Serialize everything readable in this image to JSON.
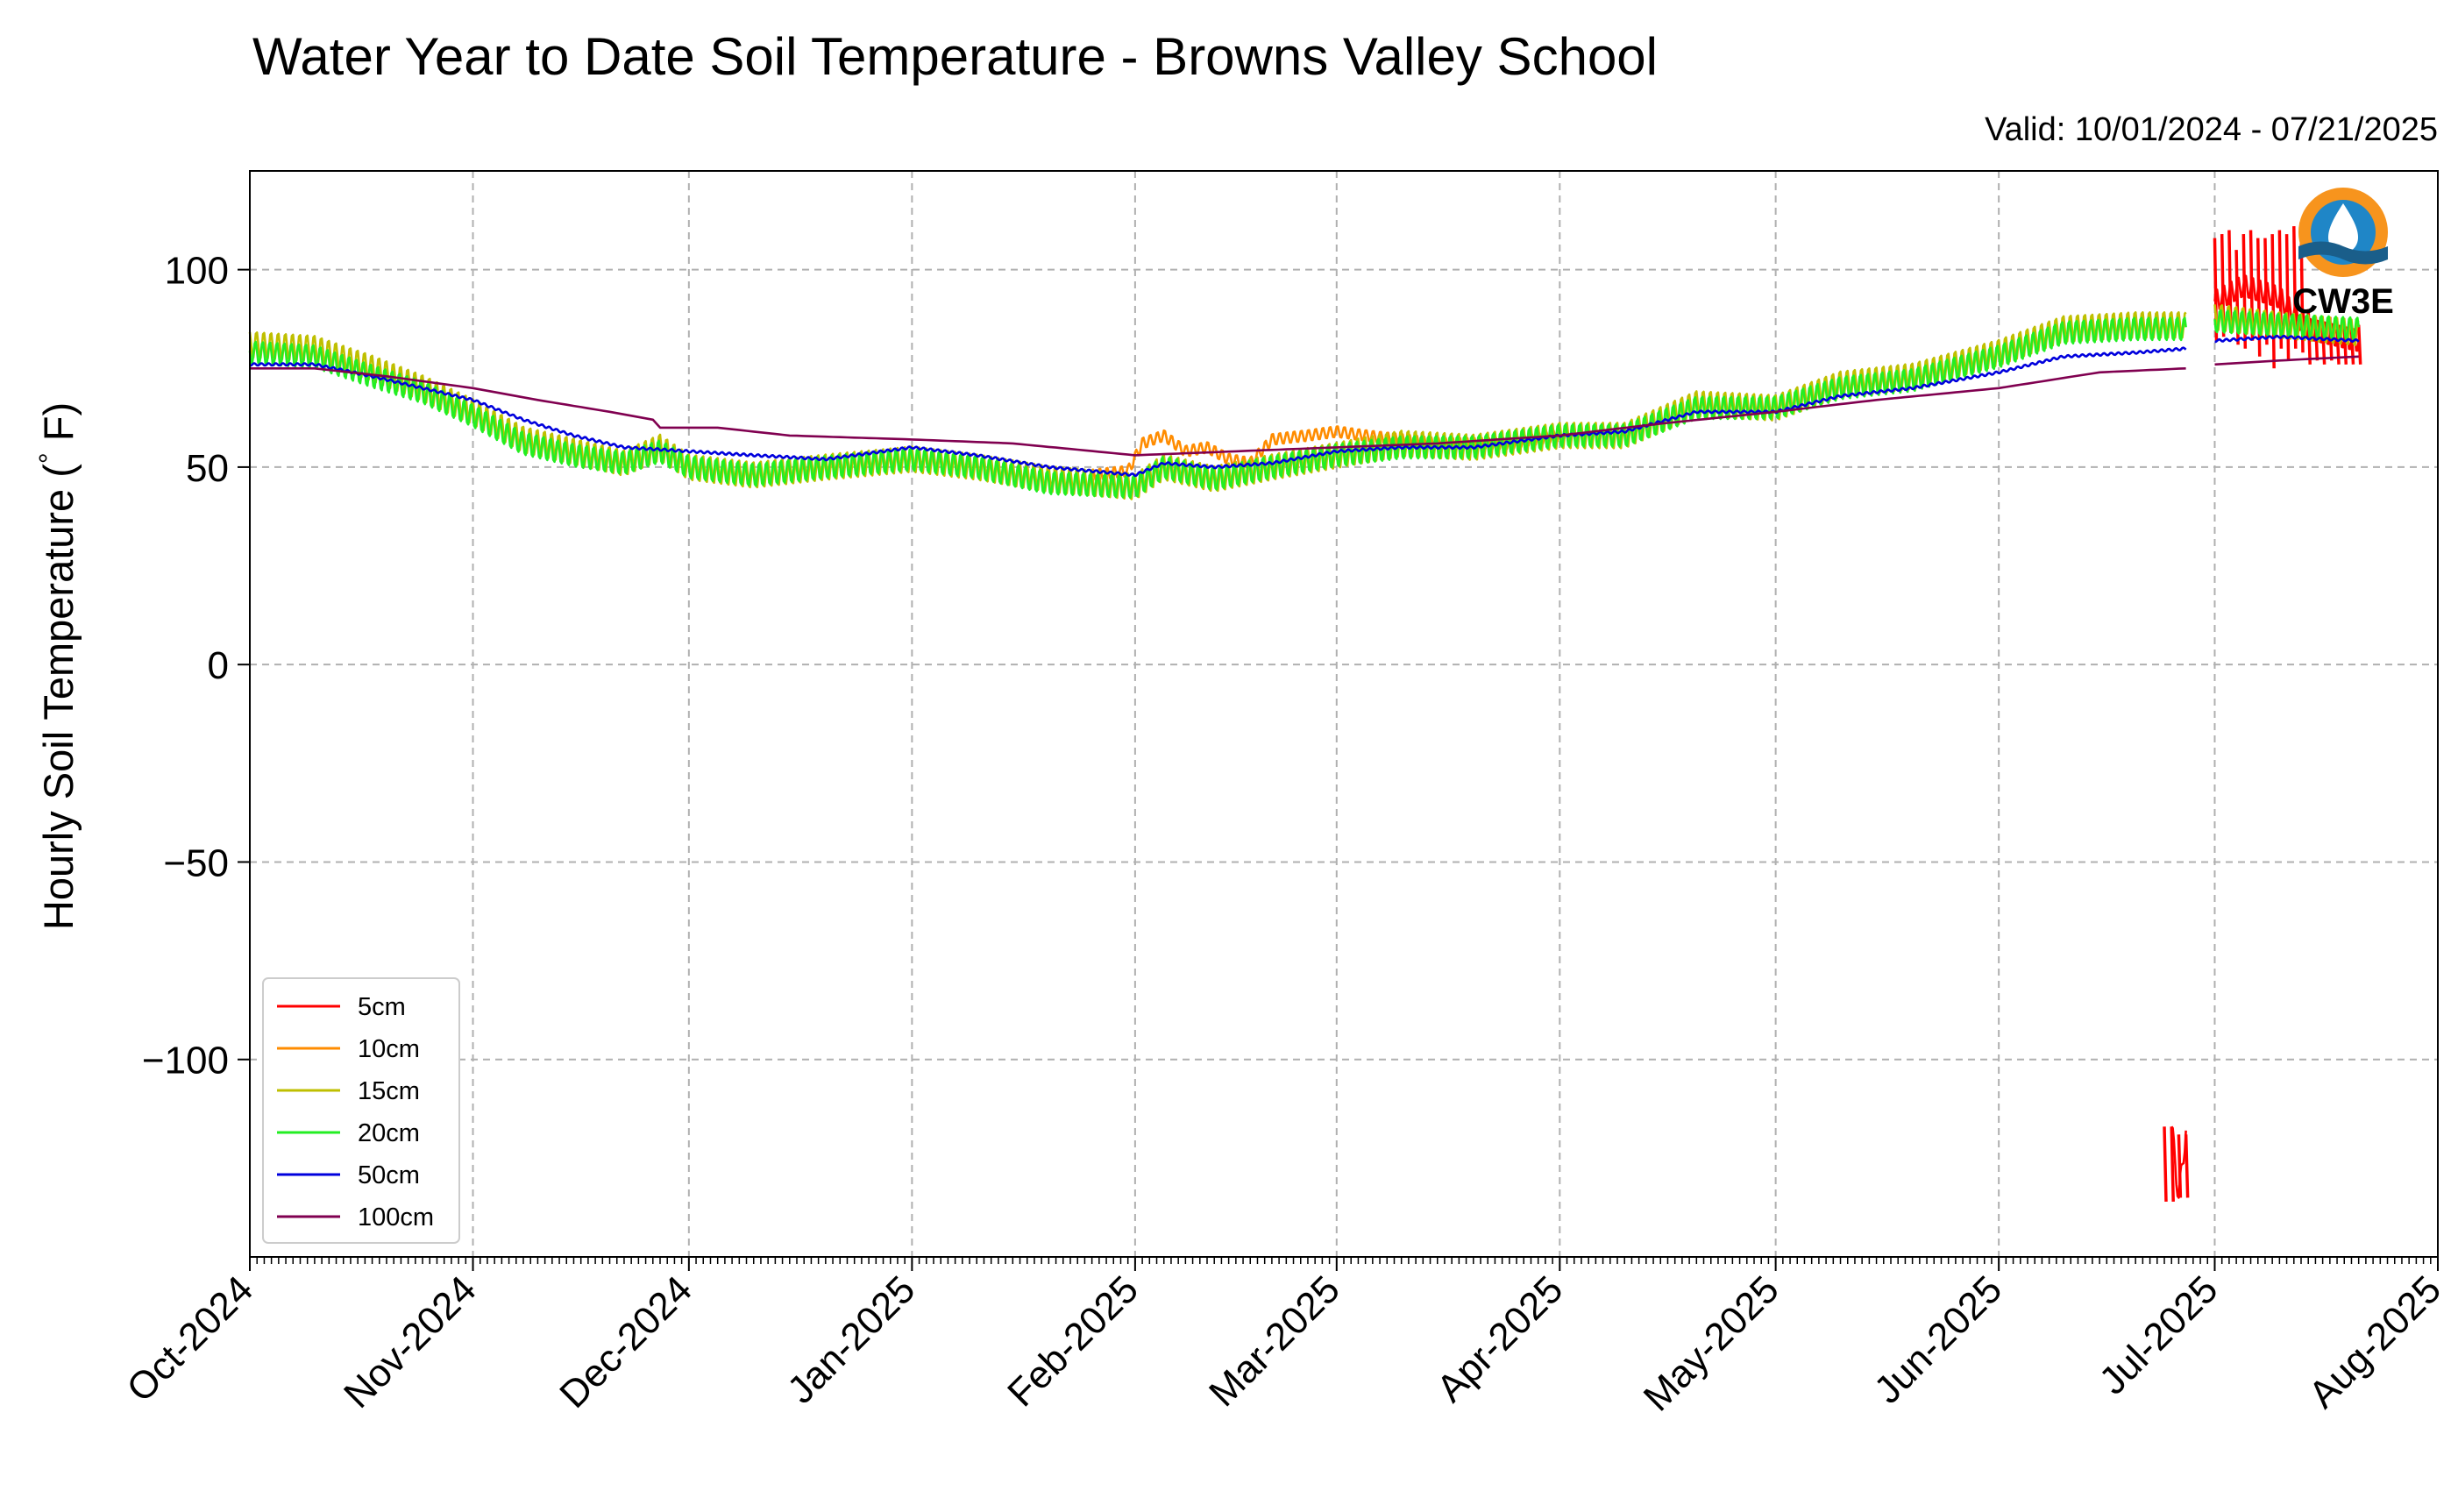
{
  "chart_data": {
    "type": "line",
    "title": "Water Year to Date Soil Temperature - Browns Valley School",
    "subtitle": "Valid: 10/01/2024 - 07/21/2025",
    "ylabel": "Hourly Soil Temperature (°F)",
    "ylabel_parts": {
      "before": "Hourly Soil Temperature (",
      "degree": "°",
      "after": " F)"
    },
    "xlabel": "",
    "xlim": [
      "2024-10-01",
      "2025-08-01"
    ],
    "ylim": [
      -150,
      125
    ],
    "grid": true,
    "legend_position": "lower-left",
    "x_ticks": [
      {
        "date": "2024-10-01",
        "label": "Oct-2024"
      },
      {
        "date": "2024-11-01",
        "label": "Nov-2024"
      },
      {
        "date": "2024-12-01",
        "label": "Dec-2024"
      },
      {
        "date": "2025-01-01",
        "label": "Jan-2025"
      },
      {
        "date": "2025-02-01",
        "label": "Feb-2025"
      },
      {
        "date": "2025-03-01",
        "label": "Mar-2025"
      },
      {
        "date": "2025-04-01",
        "label": "Apr-2025"
      },
      {
        "date": "2025-05-01",
        "label": "May-2025"
      },
      {
        "date": "2025-06-01",
        "label": "Jun-2025"
      },
      {
        "date": "2025-07-01",
        "label": "Jul-2025"
      },
      {
        "date": "2025-08-01",
        "label": "Aug-2025"
      }
    ],
    "y_ticks": [
      {
        "value": 100,
        "label": "100"
      },
      {
        "value": 50,
        "label": "50"
      },
      {
        "value": 0,
        "label": "0"
      },
      {
        "value": -50,
        "label": "−50"
      },
      {
        "value": -100,
        "label": "−100"
      }
    ],
    "series": [
      {
        "name": "5cm",
        "color": "#ff0000",
        "diurnal_range": 6,
        "segments": [
          [
            [
              "2025-06-25",
              -117
            ],
            [
              "2025-06-26",
              -135
            ],
            [
              "2025-06-27",
              -118
            ]
          ],
          [
            [
              "2025-07-01",
              92
            ],
            [
              "2025-07-05",
              96
            ],
            [
              "2025-07-10",
              93
            ],
            [
              "2025-07-14",
              85
            ],
            [
              "2025-07-21",
              82
            ]
          ]
        ],
        "spikes": [
          [
            "2025-06-24",
            -117,
            -136
          ],
          [
            "2025-06-25",
            -117,
            -136
          ],
          [
            "2025-06-26",
            -119,
            -135
          ],
          [
            "2025-06-27",
            -119,
            -135
          ],
          [
            "2025-07-01",
            108,
            82
          ],
          [
            "2025-07-02",
            109,
            83
          ],
          [
            "2025-07-03",
            110,
            84
          ],
          [
            "2025-07-04",
            105,
            81
          ],
          [
            "2025-07-05",
            109,
            80
          ],
          [
            "2025-07-06",
            110,
            82
          ],
          [
            "2025-07-07",
            108,
            78
          ],
          [
            "2025-07-08",
            108,
            81
          ],
          [
            "2025-07-09",
            109,
            75
          ],
          [
            "2025-07-10",
            110,
            80
          ],
          [
            "2025-07-11",
            109,
            77
          ],
          [
            "2025-07-12",
            111,
            80
          ],
          [
            "2025-07-13",
            112,
            79
          ],
          [
            "2025-07-14",
            90,
            76
          ],
          [
            "2025-07-15",
            88,
            77
          ],
          [
            "2025-07-16",
            86,
            76
          ],
          [
            "2025-07-17",
            88,
            77
          ],
          [
            "2025-07-18",
            85,
            76
          ],
          [
            "2025-07-19",
            86,
            76
          ],
          [
            "2025-07-20",
            85,
            76
          ],
          [
            "2025-07-21",
            86,
            76
          ]
        ]
      },
      {
        "name": "10cm",
        "color": "#ff8c00",
        "diurnal_range": 3,
        "segments": [
          [
            [
              "2025-01-26",
              48
            ],
            [
              "2025-01-31",
              49
            ],
            [
              "2025-02-02",
              56
            ],
            [
              "2025-02-05",
              58
            ],
            [
              "2025-02-08",
              54
            ],
            [
              "2025-02-11",
              55
            ],
            [
              "2025-02-14",
              52
            ],
            [
              "2025-02-17",
              51
            ],
            [
              "2025-02-20",
              57
            ],
            [
              "2025-02-25",
              58
            ],
            [
              "2025-03-01",
              59
            ],
            [
              "2025-03-05",
              58
            ],
            [
              "2025-03-10",
              57
            ],
            [
              "2025-03-15",
              56
            ],
            [
              "2025-03-20",
              56
            ],
            [
              "2025-03-25",
              56
            ],
            [
              "2025-04-01",
              58
            ]
          ]
        ]
      },
      {
        "name": "15cm",
        "color": "#bfbf00",
        "diurnal_range": 7,
        "segments": [
          [
            [
              "2024-10-01",
              81
            ],
            [
              "2024-10-10",
              80
            ],
            [
              "2024-10-18",
              75
            ],
            [
              "2024-10-25",
              70
            ],
            [
              "2024-11-01",
              64
            ],
            [
              "2024-11-08",
              57
            ],
            [
              "2024-11-15",
              54
            ],
            [
              "2024-11-22",
              51
            ],
            [
              "2024-11-27",
              55
            ],
            [
              "2024-12-01",
              50
            ],
            [
              "2024-12-10",
              48
            ],
            [
              "2024-12-20",
              50
            ],
            [
              "2025-01-01",
              52
            ],
            [
              "2025-01-10",
              50
            ],
            [
              "2025-01-20",
              47
            ],
            [
              "2025-02-01",
              45
            ],
            [
              "2025-02-05",
              50
            ],
            [
              "2025-02-12",
              47
            ],
            [
              "2025-02-20",
              50
            ],
            [
              "2025-03-01",
              53
            ],
            [
              "2025-03-10",
              56
            ],
            [
              "2025-03-20",
              55
            ],
            [
              "2025-04-01",
              58
            ],
            [
              "2025-04-10",
              58
            ],
            [
              "2025-04-20",
              66
            ],
            [
              "2025-05-01",
              65
            ],
            [
              "2025-05-10",
              71
            ],
            [
              "2025-05-20",
              73
            ],
            [
              "2025-06-01",
              79
            ],
            [
              "2025-06-10",
              85
            ],
            [
              "2025-06-20",
              86
            ],
            [
              "2025-06-27",
              86
            ]
          ],
          [
            [
              "2025-07-01",
              88
            ],
            [
              "2025-07-10",
              86
            ],
            [
              "2025-07-21",
              84
            ]
          ]
        ]
      },
      {
        "name": "20cm",
        "color": "#22ee22",
        "diurnal_range": 6,
        "segments": [
          [
            [
              "2024-10-01",
              79
            ],
            [
              "2024-10-10",
              78
            ],
            [
              "2024-10-18",
              73
            ],
            [
              "2024-10-25",
              69
            ],
            [
              "2024-11-01",
              63
            ],
            [
              "2024-11-08",
              56
            ],
            [
              "2024-11-15",
              53
            ],
            [
              "2024-11-22",
              51
            ],
            [
              "2024-11-27",
              54
            ],
            [
              "2024-12-01",
              50
            ],
            [
              "2024-12-10",
              48
            ],
            [
              "2024-12-20",
              50
            ],
            [
              "2025-01-01",
              52
            ],
            [
              "2025-01-10",
              50
            ],
            [
              "2025-01-20",
              46
            ],
            [
              "2025-02-01",
              45
            ],
            [
              "2025-02-05",
              50
            ],
            [
              "2025-02-12",
              47
            ],
            [
              "2025-02-20",
              50
            ],
            [
              "2025-03-01",
              53
            ],
            [
              "2025-03-10",
              55
            ],
            [
              "2025-03-20",
              55
            ],
            [
              "2025-04-01",
              58
            ],
            [
              "2025-04-10",
              58
            ],
            [
              "2025-04-20",
              65
            ],
            [
              "2025-05-01",
              65
            ],
            [
              "2025-05-10",
              70
            ],
            [
              "2025-05-20",
              72
            ],
            [
              "2025-06-01",
              78
            ],
            [
              "2025-06-10",
              84
            ],
            [
              "2025-06-20",
              85
            ],
            [
              "2025-06-27",
              85
            ]
          ],
          [
            [
              "2025-07-01",
              87
            ],
            [
              "2025-07-10",
              86
            ],
            [
              "2025-07-21",
              85
            ]
          ]
        ]
      },
      {
        "name": "50cm",
        "color": "#0000dd",
        "diurnal_range": 0.6,
        "segments": [
          [
            [
              "2024-10-01",
              76
            ],
            [
              "2024-10-10",
              76
            ],
            [
              "2024-10-18",
              73
            ],
            [
              "2024-10-25",
              70
            ],
            [
              "2024-11-01",
              67
            ],
            [
              "2024-11-08",
              62
            ],
            [
              "2024-11-15",
              58
            ],
            [
              "2024-11-22",
              55
            ],
            [
              "2024-12-01",
              54
            ],
            [
              "2024-12-10",
              53
            ],
            [
              "2024-12-20",
              52
            ],
            [
              "2025-01-01",
              55
            ],
            [
              "2025-01-10",
              53
            ],
            [
              "2025-01-20",
              50
            ],
            [
              "2025-02-01",
              48
            ],
            [
              "2025-02-05",
              51
            ],
            [
              "2025-02-12",
              50
            ],
            [
              "2025-02-20",
              51
            ],
            [
              "2025-03-01",
              54
            ],
            [
              "2025-03-10",
              55
            ],
            [
              "2025-03-20",
              55
            ],
            [
              "2025-04-01",
              58
            ],
            [
              "2025-04-10",
              59
            ],
            [
              "2025-04-20",
              64
            ],
            [
              "2025-05-01",
              64
            ],
            [
              "2025-05-10",
              68
            ],
            [
              "2025-05-20",
              70
            ],
            [
              "2025-06-01",
              74
            ],
            [
              "2025-06-10",
              78
            ],
            [
              "2025-06-20",
              79
            ],
            [
              "2025-06-27",
              80
            ]
          ],
          [
            [
              "2025-07-01",
              82
            ],
            [
              "2025-07-10",
              83
            ],
            [
              "2025-07-21",
              82
            ]
          ]
        ]
      },
      {
        "name": "100cm",
        "color": "#800050",
        "diurnal_range": 0,
        "segments": [
          [
            [
              "2024-10-01",
              75
            ],
            [
              "2024-10-10",
              75
            ],
            [
              "2024-10-20",
              73
            ],
            [
              "2024-11-01",
              70
            ],
            [
              "2024-11-10",
              67
            ],
            [
              "2024-11-20",
              64
            ],
            [
              "2024-11-26",
              62
            ],
            [
              "2024-11-27",
              60
            ],
            [
              "2024-12-05",
              60
            ],
            [
              "2024-12-15",
              58
            ],
            [
              "2025-01-01",
              57
            ],
            [
              "2025-01-15",
              56
            ],
            [
              "2025-02-01",
              53
            ],
            [
              "2025-02-15",
              54
            ],
            [
              "2025-03-01",
              55
            ],
            [
              "2025-03-15",
              56
            ],
            [
              "2025-04-01",
              58
            ],
            [
              "2025-04-15",
              61
            ],
            [
              "2025-05-01",
              64
            ],
            [
              "2025-05-15",
              67
            ],
            [
              "2025-06-01",
              70
            ],
            [
              "2025-06-15",
              74
            ],
            [
              "2025-06-27",
              75
            ]
          ],
          [
            [
              "2025-07-01",
              76
            ],
            [
              "2025-07-10",
              77
            ],
            [
              "2025-07-21",
              78
            ]
          ]
        ]
      }
    ]
  },
  "logo": {
    "text": "CW3E",
    "icon": "cw3e-water-drop-logo",
    "colors": {
      "ring": "#f7941d",
      "inner": "#1f86c7",
      "wave": "#1a5e8a",
      "text": "#2a8fc9"
    }
  }
}
